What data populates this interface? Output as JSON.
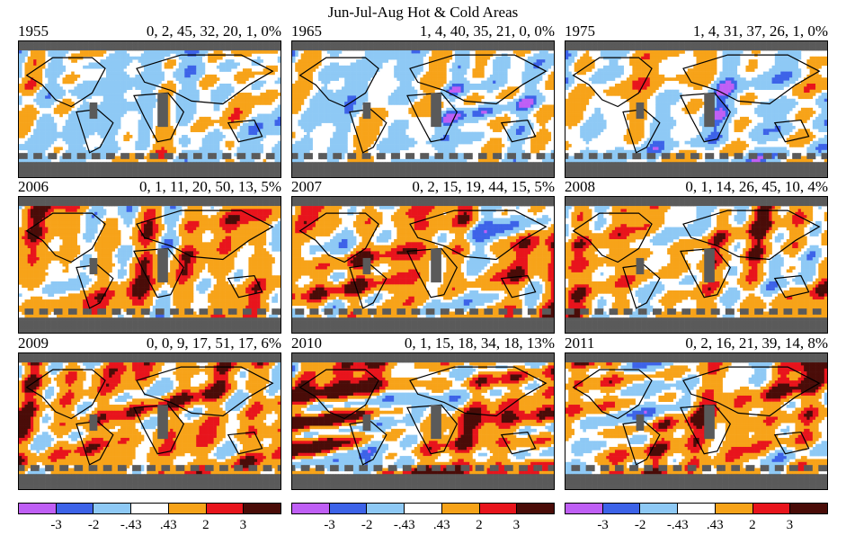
{
  "chart_data": {
    "type": "heatmap",
    "title": "Jun-Jul-Aug Hot & Cold Areas",
    "colors": {
      "minus_inf_to_-3": "#bf5ff5",
      "-3_to_-2": "#3d63e8",
      "-2_to_-0.43": "#8ec9f5",
      "-0.43_to_0.43": "#ffffff",
      "0.43_to_2": "#f7a319",
      "2_to_3": "#e8141c",
      "3_to_inf": "#4a0c08",
      "missing": "#5a5a5a"
    },
    "colorbar": {
      "tick_labels": [
        "-3",
        "-2",
        "-.43",
        ".43",
        "2",
        "3"
      ],
      "colors": [
        "#bf5ff5",
        "#3d63e8",
        "#8ec9f5",
        "#ffffff",
        "#f7a319",
        "#e8141c",
        "#4a0c08"
      ]
    },
    "panels": [
      {
        "year": "1955",
        "stats": "0, 2, 45, 32, 20, 1, 0%",
        "percentages": [
          0,
          2,
          45,
          32,
          20,
          1,
          0
        ]
      },
      {
        "year": "1965",
        "stats": "1, 4, 40, 35, 21, 0, 0%",
        "percentages": [
          1,
          4,
          40,
          35,
          21,
          0,
          0
        ]
      },
      {
        "year": "1975",
        "stats": "1, 4, 31, 37, 26, 1, 0%",
        "percentages": [
          1,
          4,
          31,
          37,
          26,
          1,
          0
        ]
      },
      {
        "year": "2006",
        "stats": "0, 1, 11, 20, 50, 13, 5%",
        "percentages": [
          0,
          1,
          11,
          20,
          50,
          13,
          5
        ]
      },
      {
        "year": "2007",
        "stats": "0, 2, 15, 19, 44, 15, 5%",
        "percentages": [
          0,
          2,
          15,
          19,
          44,
          15,
          5
        ]
      },
      {
        "year": "2008",
        "stats": "0, 1, 14, 26, 45, 10, 4%",
        "percentages": [
          0,
          1,
          14,
          26,
          45,
          10,
          4
        ]
      },
      {
        "year": "2009",
        "stats": "0, 0, 9, 17, 51, 17, 6%",
        "percentages": [
          0,
          0,
          9,
          17,
          51,
          17,
          6
        ]
      },
      {
        "year": "2010",
        "stats": "0, 1, 15, 18, 34, 18, 13%",
        "percentages": [
          0,
          1,
          15,
          18,
          34,
          18,
          13
        ]
      },
      {
        "year": "2011",
        "stats": "0, 2, 16, 21, 39, 14, 8%",
        "percentages": [
          0,
          2,
          16,
          21,
          39,
          14,
          8
        ]
      }
    ]
  }
}
